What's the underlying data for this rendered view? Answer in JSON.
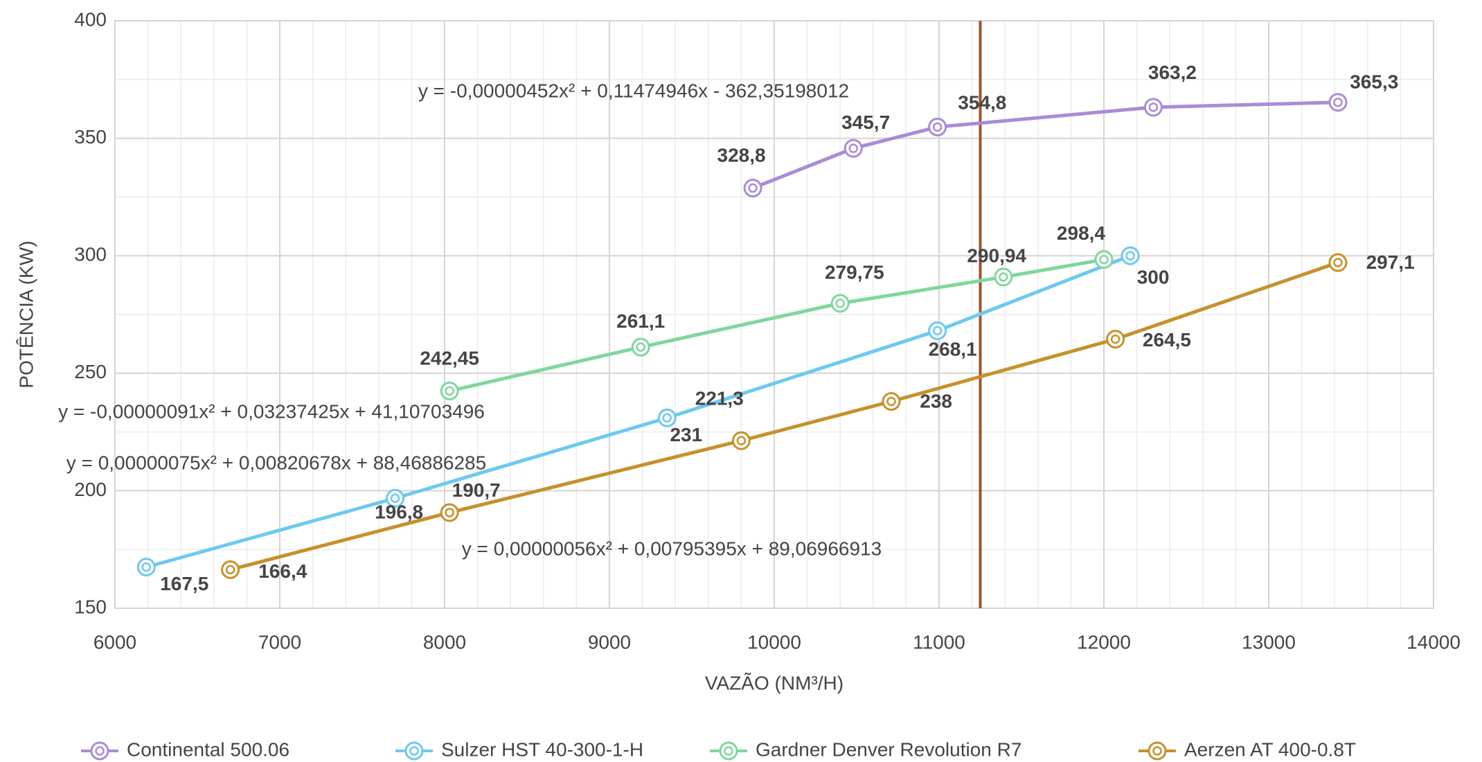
{
  "chart_data": {
    "type": "line",
    "x_label": "VAZÃO (NM³/H)",
    "y_label": "POTÊNCIA (KW)",
    "xlim": [
      6000,
      14000
    ],
    "xticks": [
      6000,
      7000,
      8000,
      9000,
      10000,
      11000,
      12000,
      13000,
      14000
    ],
    "ylim": [
      150,
      400
    ],
    "yticks": [
      150,
      200,
      250,
      300,
      350,
      400
    ],
    "grid": true,
    "legend": "bottom",
    "reference_x": 11250,
    "reference_color": "#a0522d",
    "series": [
      {
        "name": "Continental 500.06",
        "color": "#a98bd6",
        "label_color": "#7030a0",
        "x": [
          9870,
          10480,
          10990,
          12300,
          13420
        ],
        "values": [
          328.8,
          345.7,
          354.8,
          363.2,
          365.3
        ],
        "value_labels": [
          "328,8",
          "345,7",
          "354,8",
          "363,2",
          "365,3"
        ],
        "equation": "y = -0,00000452x² + 0,11474946x - 362,35198012"
      },
      {
        "name": "Sulzer HST 40-300-1-H",
        "color": "#6cc9f0",
        "label_color": "#1f6fc0",
        "x": [
          6190,
          7700,
          9350,
          10990,
          12160
        ],
        "values": [
          167.5,
          196.8,
          231,
          268.1,
          300
        ],
        "value_labels": [
          "167,5",
          "196,8",
          "231",
          "268,1",
          "300"
        ],
        "equation": "y = 0,00000075x² + 0,00820678x + 88,46886285"
      },
      {
        "name": "Gardner Denver Revolution R7",
        "color": "#7fd69e",
        "label_color": "#22a84c",
        "x": [
          8030,
          9190,
          10400,
          11390,
          12000
        ],
        "values": [
          242.45,
          261.1,
          279.75,
          290.94,
          298.4
        ],
        "value_labels": [
          "242,45",
          "261,1",
          "279,75",
          "290,94",
          "298,4"
        ],
        "equation": "y = -0,00000091x² + 0,03237425x + 41,10703496"
      },
      {
        "name": "Aerzen AT 400-0.8T",
        "color": "#c8902a",
        "label_color": "#7f6000",
        "x": [
          6700,
          8030,
          9800,
          10710,
          12070,
          13420
        ],
        "values": [
          166.4,
          190.7,
          221.3,
          238,
          264.5,
          297.1
        ],
        "value_labels": [
          "166,4",
          "190,7",
          "221,3",
          "238",
          "264,5",
          "297,1"
        ],
        "equation": "y = 0,00000056x² + 0,00795395x + 89,06966913"
      }
    ]
  }
}
